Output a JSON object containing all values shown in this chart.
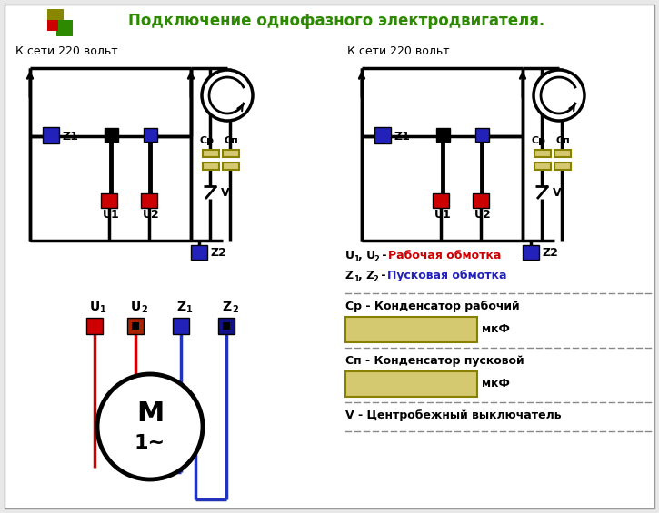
{
  "title": "Подключение однофазного электродвигателя.",
  "title_color": "#2d8a00",
  "title_fontsize": 12,
  "bg_color": "#e8e8e8",
  "white": "#ffffff",
  "red_color": "#cc0000",
  "blue_color": "#2222bb",
  "dark_blue": "#1a1a88",
  "olive_color": "#888800",
  "green_color": "#2d8a00",
  "black": "#000000",
  "yellow_box": "#d4c870",
  "yellow_border": "#8a8000",
  "label_u1u2_colored": "Рабочая обмотка",
  "label_z1z2_colored": "Пусковая обмотка",
  "label_cp": "Ср - Конденсатор рабочий",
  "label_mkf1": "мкФ",
  "label_cn": "Сп - Конденсатор пусковой",
  "label_mkf2": "мкФ",
  "label_v": "V - Центробежный выключатель",
  "label_net": "К сети 220 вольт",
  "label_m": "M",
  "label_tilde": "1~",
  "label_cp_sym": "Ср",
  "label_cn_sym": "Сп",
  "label_v_sym": "V"
}
